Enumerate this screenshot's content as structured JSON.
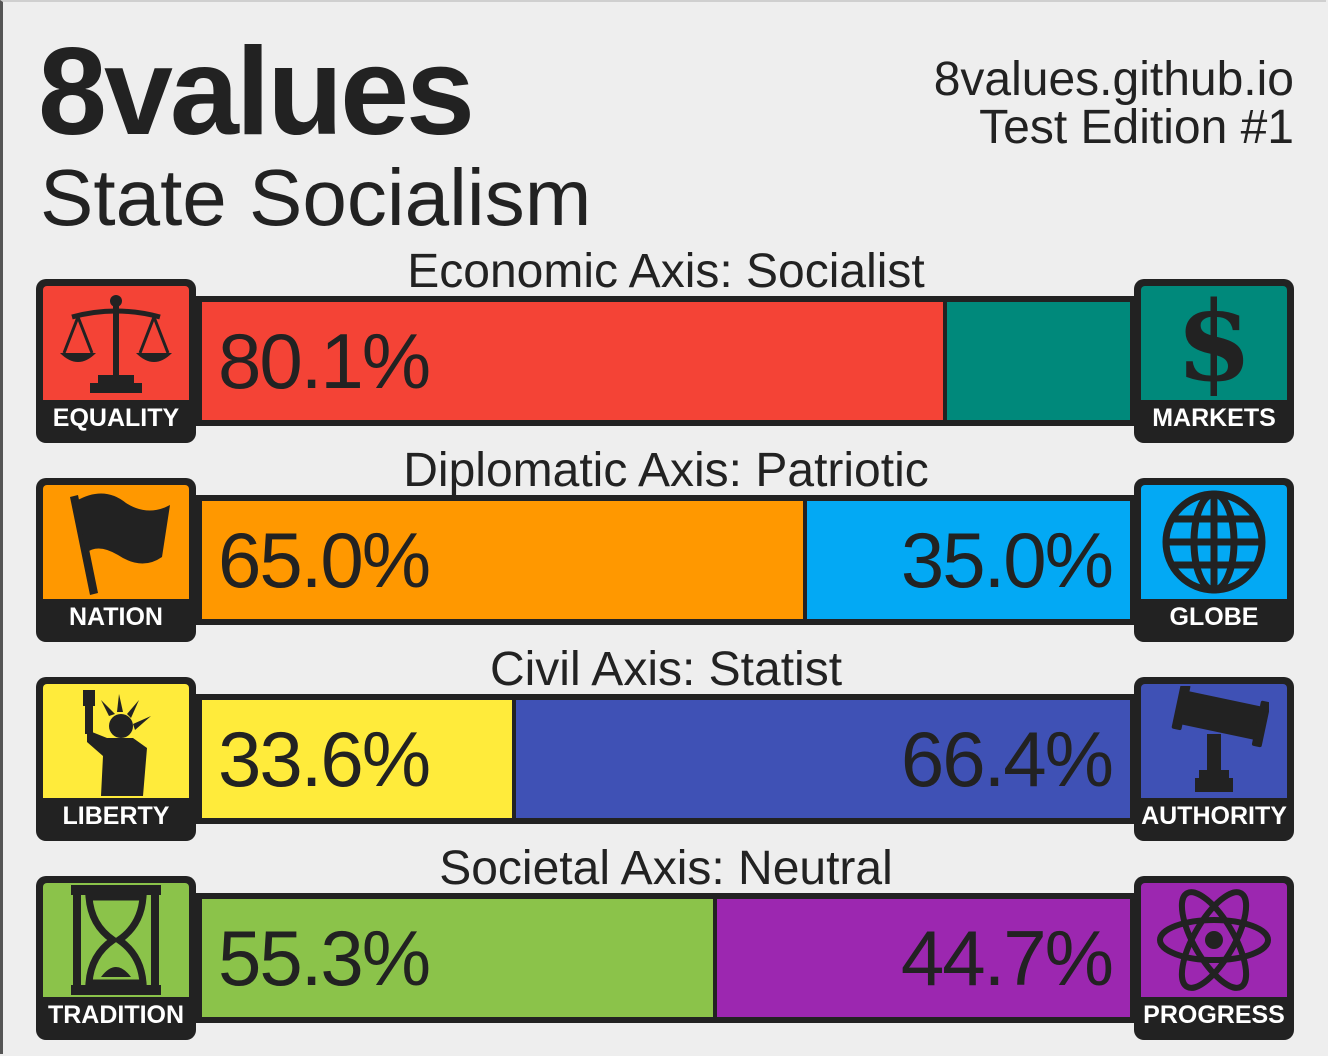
{
  "header": {
    "brand": "8values",
    "result": "State Socialism",
    "site": "8values.github.io",
    "edition": "Test Edition #1"
  },
  "chart_data": {
    "type": "bar",
    "axes": [
      {
        "label": "Economic Axis: Socialist",
        "left": {
          "name": "EQUALITY",
          "icon": "scales-icon",
          "color": "#f44336",
          "value": 80.1,
          "text": "80.1%"
        },
        "right": {
          "name": "MARKETS",
          "icon": "dollar-icon",
          "color": "#00897b",
          "value": 19.9,
          "text": ""
        }
      },
      {
        "label": "Diplomatic Axis: Patriotic",
        "left": {
          "name": "NATION",
          "icon": "flag-icon",
          "color": "#ff9800",
          "value": 65.0,
          "text": "65.0%"
        },
        "right": {
          "name": "GLOBE",
          "icon": "globe-icon",
          "color": "#03a9f4",
          "value": 35.0,
          "text": "35.0%"
        }
      },
      {
        "label": "Civil Axis: Statist",
        "left": {
          "name": "LIBERTY",
          "icon": "statue-of-liberty-icon",
          "color": "#ffeb3b",
          "value": 33.6,
          "text": "33.6%"
        },
        "right": {
          "name": "AUTHORITY",
          "icon": "gavel-icon",
          "color": "#3f51b5",
          "value": 66.4,
          "text": "66.4%"
        }
      },
      {
        "label": "Societal Axis: Neutral",
        "left": {
          "name": "TRADITION",
          "icon": "hourglass-icon",
          "color": "#8bc34a",
          "value": 55.3,
          "text": "55.3%"
        },
        "right": {
          "name": "PROGRESS",
          "icon": "atom-icon",
          "color": "#9c27b0",
          "value": 44.7,
          "text": "44.7%"
        }
      }
    ]
  }
}
